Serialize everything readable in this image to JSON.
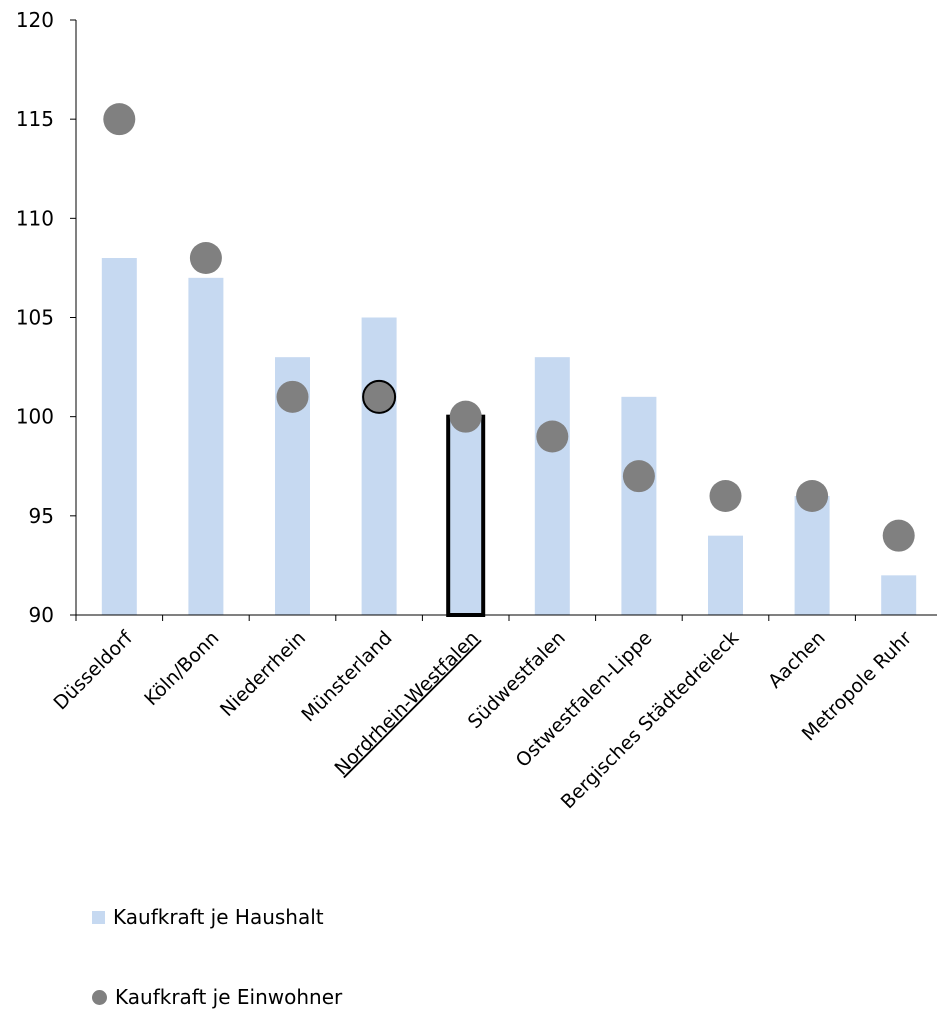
{
  "chart_data": {
    "type": "bar",
    "title": "",
    "xlabel": "",
    "ylabel": "",
    "categories": [
      "Düsseldorf",
      "Köln/Bonn",
      "Niederrhein",
      "Münsterland",
      "Nordrhein-Westfalen",
      "Südwestfalen",
      "Ostwestfalen-Lippe",
      "Bergisches Städtedreieck",
      "Aachen",
      "Metropole Ruhr"
    ],
    "ylim": [
      90,
      120
    ],
    "yticks": [
      90,
      95,
      100,
      105,
      110,
      115,
      120
    ],
    "series": [
      {
        "name": "Kaufkraft je Haushalt",
        "kind": "bar",
        "color": "#c6d9f1",
        "values": [
          108,
          107,
          103,
          105,
          100,
          103,
          101,
          94,
          96,
          92
        ]
      },
      {
        "name": "Kaufkraft je Einwohner",
        "kind": "dot",
        "color": "#808080",
        "values": [
          115,
          108,
          101,
          101,
          100,
          99,
          97,
          96,
          96,
          94
        ]
      }
    ],
    "highlight_category": "Nordrhein-Westfalen",
    "outlined_dot_category": "Münsterland",
    "grid": false,
    "legend_position": "bottom-left"
  }
}
